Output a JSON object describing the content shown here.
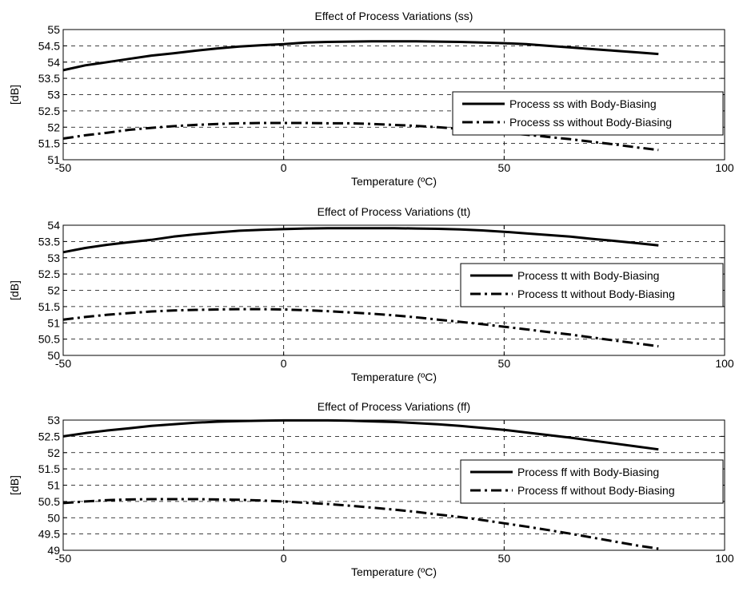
{
  "chart_data": [
    {
      "type": "line",
      "title": "Effect of Process Variations (ss)",
      "xlabel": "Temperature (ºC)",
      "ylabel": "[dB]",
      "xlim": [
        -50,
        100
      ],
      "ylim": [
        51,
        55
      ],
      "xticks": [
        -50,
        0,
        50,
        100
      ],
      "yticks": [
        51,
        51.5,
        52,
        52.5,
        53,
        53.5,
        54,
        54.5,
        55
      ],
      "grid": true,
      "legend_position": "right",
      "x": [
        -50,
        -45,
        -40,
        -35,
        -30,
        -25,
        -20,
        -15,
        -10,
        -5,
        0,
        5,
        10,
        15,
        20,
        25,
        30,
        35,
        40,
        45,
        50,
        55,
        60,
        65,
        70,
        75,
        80,
        85
      ],
      "series": [
        {
          "name": "Process ss with Body-Biasing",
          "style": "solid",
          "values": [
            53.75,
            53.9,
            54.0,
            54.1,
            54.2,
            54.27,
            54.35,
            54.42,
            54.48,
            54.52,
            54.55,
            54.6,
            54.62,
            54.63,
            54.64,
            54.64,
            54.64,
            54.63,
            54.62,
            54.6,
            54.58,
            54.55,
            54.5,
            54.45,
            54.4,
            54.35,
            54.3,
            54.25
          ]
        },
        {
          "name": "Process ss without Body-Biasing",
          "style": "dashdot",
          "values": [
            51.65,
            51.75,
            51.83,
            51.92,
            51.98,
            52.03,
            52.07,
            52.1,
            52.12,
            52.13,
            52.13,
            52.13,
            52.12,
            52.12,
            52.1,
            52.07,
            52.04,
            52.0,
            51.95,
            51.9,
            51.83,
            51.77,
            51.7,
            51.63,
            51.55,
            51.47,
            51.38,
            51.3
          ]
        }
      ]
    },
    {
      "type": "line",
      "title": "Effect of Process Variations (tt)",
      "xlabel": "Temperature (ºC)",
      "ylabel": "[dB]",
      "xlim": [
        -50,
        100
      ],
      "ylim": [
        50,
        54
      ],
      "xticks": [
        -50,
        0,
        50,
        100
      ],
      "yticks": [
        50,
        50.5,
        51,
        51.5,
        52,
        52.5,
        53,
        53.5,
        54
      ],
      "grid": true,
      "legend_position": "right",
      "x": [
        -50,
        -45,
        -40,
        -35,
        -30,
        -25,
        -20,
        -15,
        -10,
        -5,
        0,
        5,
        10,
        15,
        20,
        25,
        30,
        35,
        40,
        45,
        50,
        55,
        60,
        65,
        70,
        75,
        80,
        85
      ],
      "series": [
        {
          "name": "Process tt with Body-Biasing",
          "style": "solid",
          "values": [
            53.17,
            53.3,
            53.4,
            53.48,
            53.55,
            53.65,
            53.72,
            53.78,
            53.83,
            53.86,
            53.88,
            53.9,
            53.91,
            53.91,
            53.91,
            53.91,
            53.9,
            53.89,
            53.87,
            53.84,
            53.8,
            53.75,
            53.7,
            53.65,
            53.58,
            53.52,
            53.45,
            53.38
          ]
        },
        {
          "name": "Process tt without Body-Biasing",
          "style": "dashdot",
          "values": [
            51.1,
            51.18,
            51.25,
            51.3,
            51.35,
            51.38,
            51.4,
            51.41,
            51.42,
            51.42,
            51.41,
            51.39,
            51.36,
            51.32,
            51.28,
            51.23,
            51.17,
            51.1,
            51.03,
            50.96,
            50.88,
            50.8,
            50.72,
            50.64,
            50.55,
            50.46,
            50.37,
            50.28
          ]
        }
      ]
    },
    {
      "type": "line",
      "title": "Effect of Process Variations (ff)",
      "xlabel": "Temperature (ºC)",
      "ylabel": "[dB]",
      "xlim": [
        -50,
        100
      ],
      "ylim": [
        49,
        53
      ],
      "xticks": [
        -50,
        0,
        50,
        100
      ],
      "yticks": [
        49,
        49.5,
        50,
        50.5,
        51,
        51.5,
        52,
        52.5,
        53
      ],
      "grid": true,
      "legend_position": "right",
      "x": [
        -50,
        -45,
        -40,
        -35,
        -30,
        -25,
        -20,
        -15,
        -10,
        -5,
        0,
        5,
        10,
        15,
        20,
        25,
        30,
        35,
        40,
        45,
        50,
        55,
        60,
        65,
        70,
        75,
        80,
        85
      ],
      "series": [
        {
          "name": "Process ff with Body-Biasing",
          "style": "solid",
          "values": [
            52.5,
            52.6,
            52.68,
            52.75,
            52.82,
            52.87,
            52.92,
            52.95,
            52.97,
            52.98,
            52.99,
            52.99,
            52.99,
            52.98,
            52.96,
            52.94,
            52.91,
            52.87,
            52.82,
            52.76,
            52.7,
            52.62,
            52.54,
            52.46,
            52.37,
            52.28,
            52.19,
            52.1
          ]
        },
        {
          "name": "Process ff without Body-Biasing",
          "style": "dashdot",
          "values": [
            50.45,
            50.5,
            50.54,
            50.56,
            50.57,
            50.57,
            50.57,
            50.56,
            50.55,
            50.53,
            50.5,
            50.46,
            50.42,
            50.37,
            50.31,
            50.25,
            50.18,
            50.1,
            50.02,
            49.93,
            49.83,
            49.73,
            49.62,
            49.51,
            49.39,
            49.27,
            49.15,
            49.05
          ]
        }
      ]
    }
  ]
}
